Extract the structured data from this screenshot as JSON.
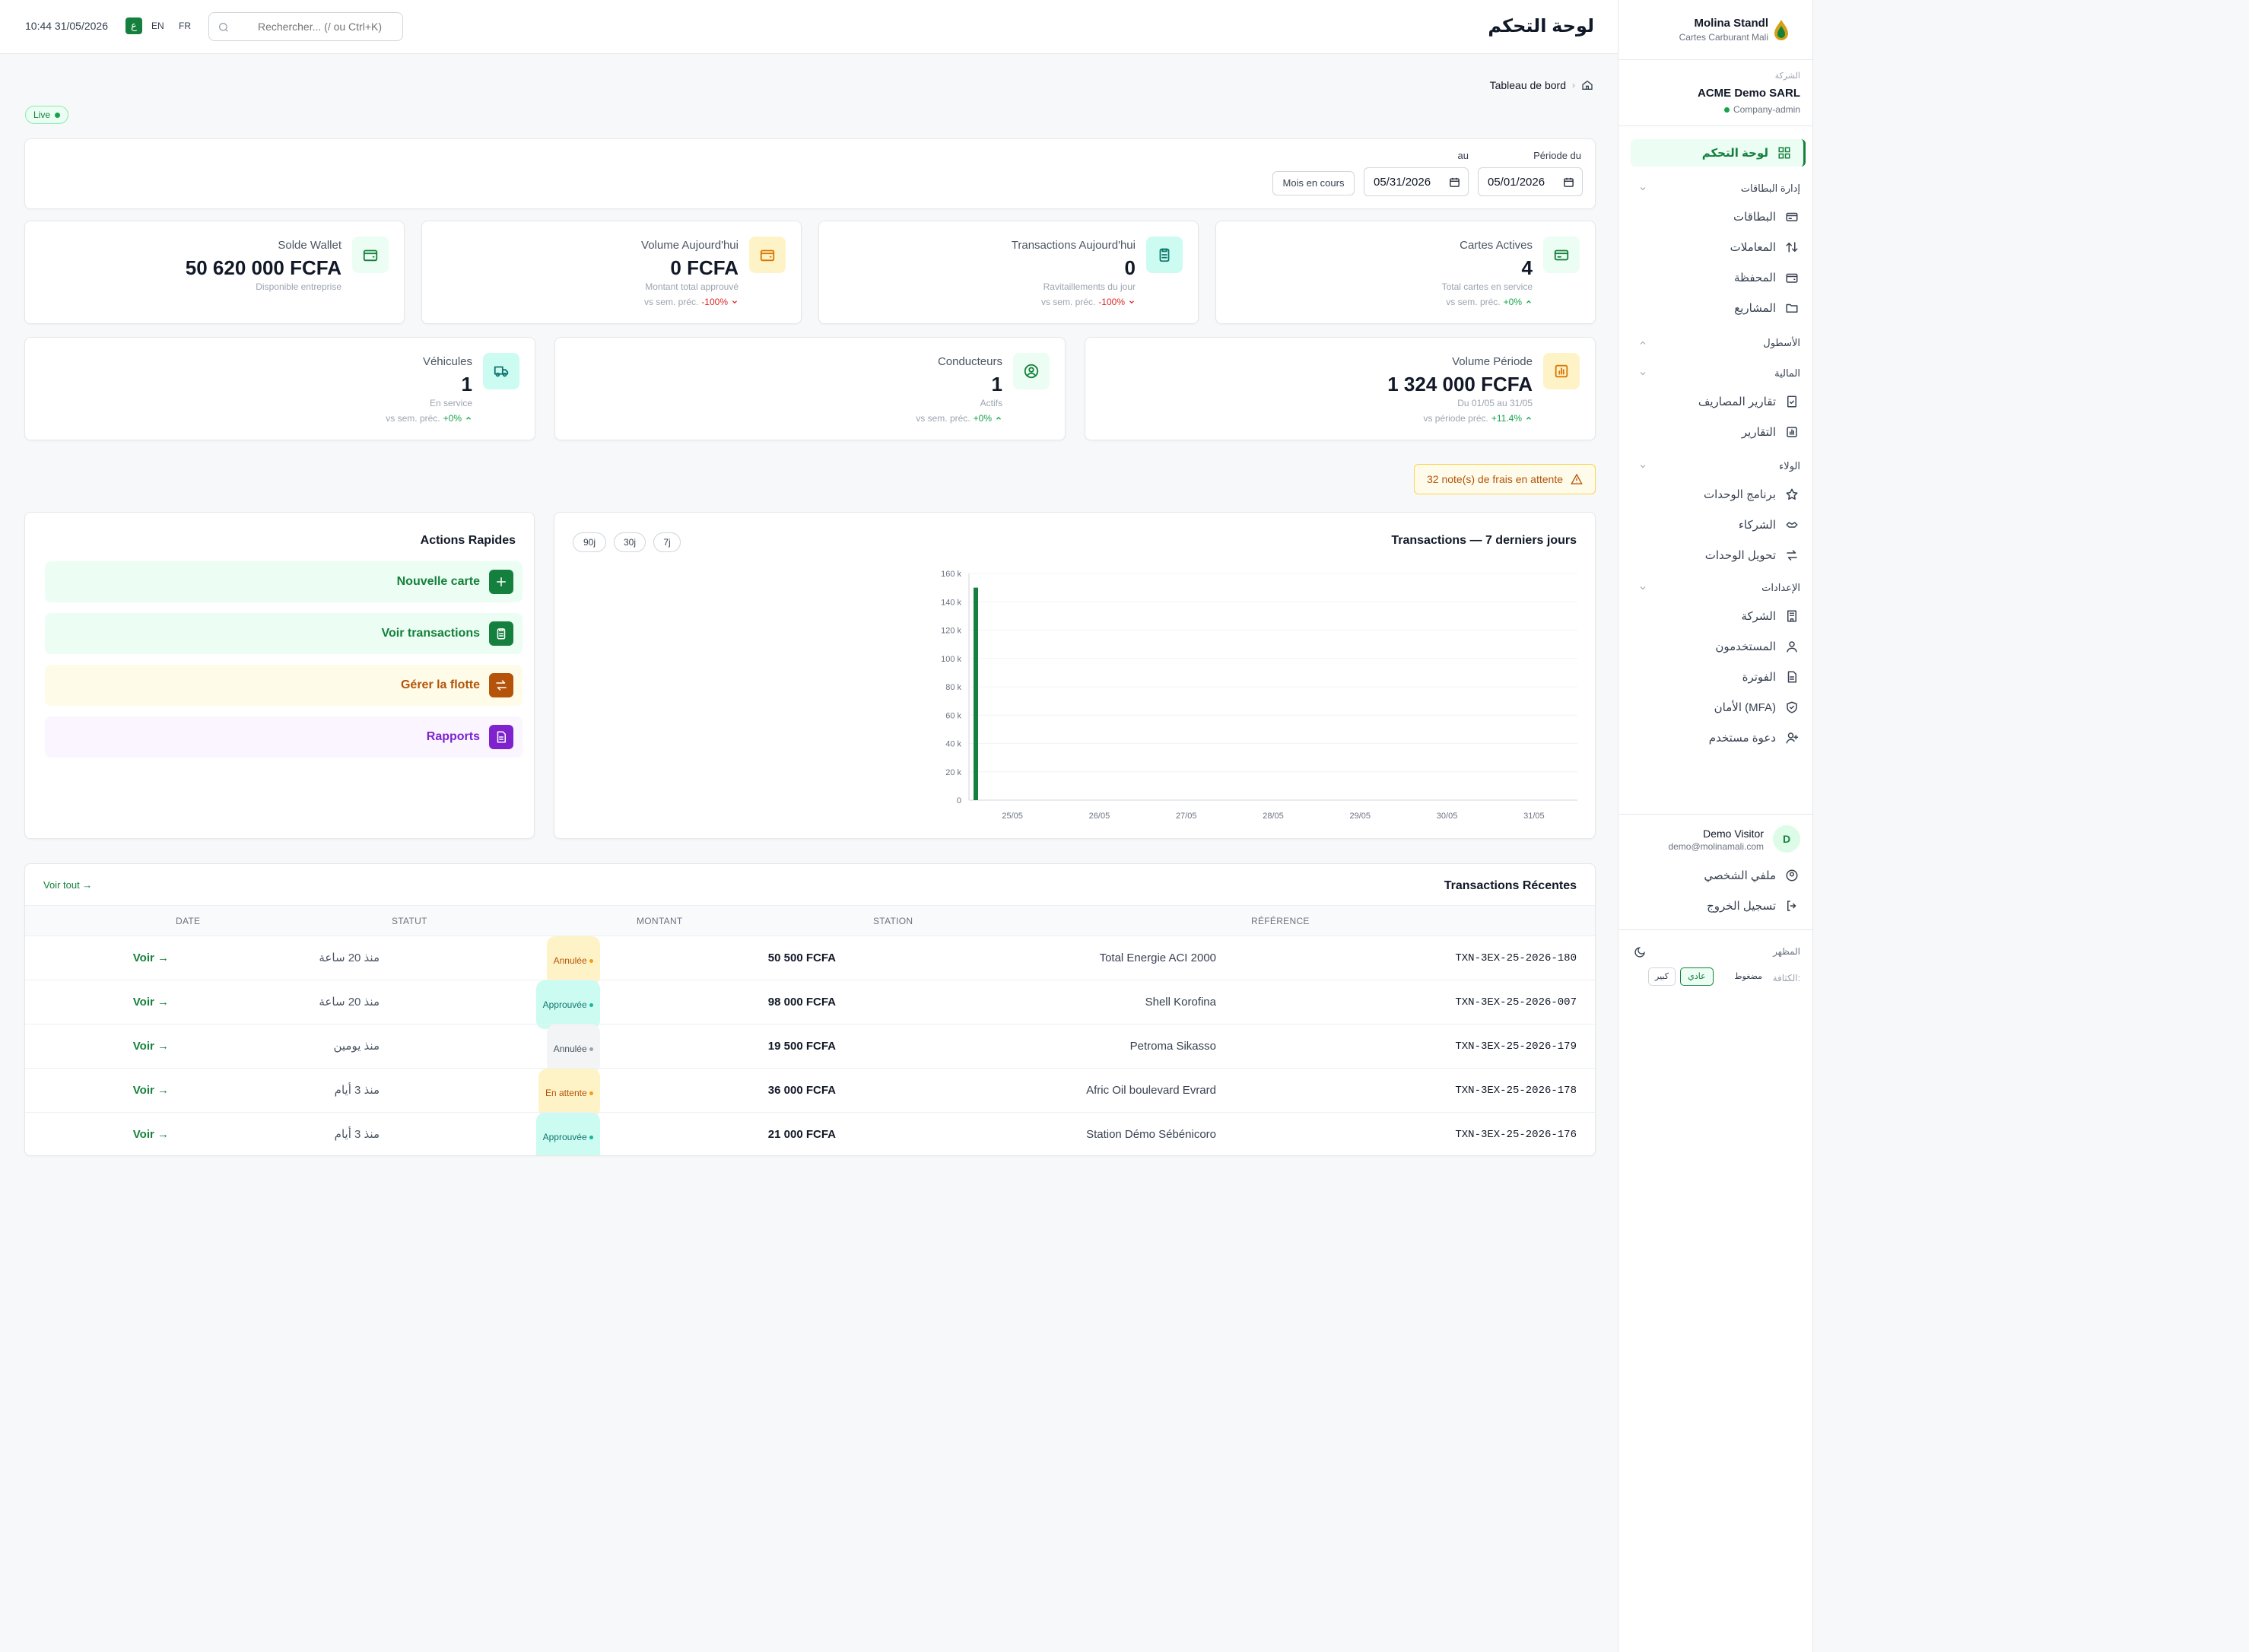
{
  "colors": {
    "primary": "#15803d",
    "accent_bg": "#ecfdf3",
    "amber": "#d97706",
    "purple": "#7e22ce",
    "red": "#dc2626"
  },
  "header": {
    "datetime": "10:44 31/05/2026",
    "lang_ar": "ع",
    "lang_en": "EN",
    "lang_fr": "FR",
    "search_placeholder": "Rechercher... (/ ou Ctrl+K)",
    "page_title": "لوحة التحكم"
  },
  "sidebar": {
    "user_name": "Molina Standl",
    "user_subtitle": "Cartes Carburant Mali",
    "company_label": "الشركة",
    "company_name": "ACME Demo SARL",
    "company_role": "Company-admin",
    "active": {
      "label": "لوحة التحكم",
      "icon": "dashboard-icon"
    },
    "sections": [
      {
        "title": "إدارة البطاقات",
        "items": [
          {
            "label": "البطاقات",
            "icon": "card-icon"
          },
          {
            "label": "المعاملات",
            "icon": "arrows-updown-icon"
          },
          {
            "label": "المحفظة",
            "icon": "wallet-icon"
          },
          {
            "label": "المشاريع",
            "icon": "folder-icon"
          }
        ]
      },
      {
        "title": "الأسطول",
        "items": []
      },
      {
        "title": "المالية",
        "items": [
          {
            "label": "تقارير المصاريف",
            "icon": "receipt-icon"
          },
          {
            "label": "التقارير",
            "icon": "bar-chart-icon"
          }
        ]
      },
      {
        "title": "الولاء",
        "items": [
          {
            "label": "برنامج الوحدات",
            "icon": "star-icon"
          },
          {
            "label": "الشركاء",
            "icon": "handshake-icon"
          },
          {
            "label": "تحويل الوحدات",
            "icon": "transfer-icon"
          }
        ]
      },
      {
        "title": "الإعدادات",
        "items": [
          {
            "label": "الشركة",
            "icon": "building-icon"
          },
          {
            "label": "المستخدمون",
            "icon": "users-icon"
          },
          {
            "label": "الفوترة",
            "icon": "document-icon"
          },
          {
            "label": "الأمان (MFA)",
            "icon": "shield-icon"
          },
          {
            "label": "دعوة مستخدم",
            "icon": "user-plus-icon"
          }
        ]
      }
    ],
    "visitor_name": "Demo Visitor",
    "visitor_email": "demo@molinamali.com",
    "visitor_initial": "D",
    "profile_label": "ملفي الشخصي",
    "logout_label": "تسجيل الخروج",
    "appearance_label": "المظهر",
    "density_label": "الكثافة:",
    "density_options": [
      "مضغوط",
      "عادي",
      "كبير"
    ]
  },
  "breadcrumb": {
    "label": "Tableau de bord"
  },
  "live_badge": "Live",
  "filters": {
    "period_from_label": "Période du",
    "period_to_label": "au",
    "from_value": "05/01/2026",
    "to_value": "05/31/2026",
    "current_month_btn": "Mois en cours"
  },
  "kpis_row1": [
    {
      "label": "Cartes Actives",
      "value": "4",
      "sub": "Total cartes en service",
      "trend_prefix": "vs sem. préc.",
      "trend": "+0%",
      "trend_dir": "up",
      "icon": "card-icon"
    },
    {
      "label": "Transactions Aujourd'hui",
      "value": "0",
      "sub": "Ravitaillements du jour",
      "trend_prefix": "vs sem. préc.",
      "trend": "-100%",
      "trend_dir": "down",
      "icon": "clipboard-icon"
    },
    {
      "label": "Volume Aujourd'hui",
      "value": "0 FCFA",
      "sub": "Montant total approuvé",
      "trend_prefix": "vs sem. préc.",
      "trend": "-100%",
      "trend_dir": "down",
      "icon": "wallet-icon"
    },
    {
      "label": "Solde Wallet",
      "value": "50 620 000 FCFA",
      "sub": "Disponible entreprise",
      "icon": "wallet-icon"
    }
  ],
  "kpis_row2": [
    {
      "label": "Volume Période",
      "value": "1 324 000 FCFA",
      "sub": "Du 01/05 au 31/05",
      "trend_prefix": "vs période préc.",
      "trend": "+11.4%",
      "trend_dir": "up",
      "icon": "bar-chart-icon"
    },
    {
      "label": "Conducteurs",
      "value": "1",
      "sub": "Actifs",
      "trend_prefix": "vs sem. préc.",
      "trend": "+0%",
      "trend_dir": "up",
      "icon": "user-circle-icon"
    },
    {
      "label": "Véhicules",
      "value": "1",
      "sub": "En service",
      "trend_prefix": "vs sem. préc.",
      "trend": "+0%",
      "trend_dir": "up",
      "icon": "truck-icon"
    }
  ],
  "alert": {
    "text": "32 note(s) de frais en attente"
  },
  "chart_card": {
    "title": "Transactions — 7 derniers jours",
    "ranges": [
      "7j",
      "30j",
      "90j"
    ]
  },
  "chart_data": {
    "type": "bar",
    "title": "Transactions — 7 derniers jours",
    "categories": [
      "25/05",
      "26/05",
      "27/05",
      "28/05",
      "29/05",
      "30/05",
      "31/05"
    ],
    "y_tick_labels": [
      "0",
      "20 k",
      "40 k",
      "60 k",
      "80 k",
      "100 k",
      "120 k",
      "140 k",
      "160 k"
    ],
    "ylim": [
      0,
      160000
    ],
    "series": [
      {
        "values": [
          150000,
          0,
          0,
          0,
          0,
          0,
          0
        ]
      }
    ],
    "grid": true
  },
  "quick_actions": {
    "title": "Actions Rapides",
    "items": [
      {
        "label": "Nouvelle carte",
        "icon": "plus-icon",
        "color": "#15803d",
        "bg": "#ecfdf3"
      },
      {
        "label": "Voir transactions",
        "icon": "clipboard-icon",
        "color": "#15803d",
        "bg": "#ecfdf3"
      },
      {
        "label": "Gérer la flotte",
        "icon": "transfer-icon",
        "color": "#b45309",
        "bg": "#fefce8"
      },
      {
        "label": "Rapports",
        "icon": "document-icon",
        "color": "#7e22ce",
        "bg": "#faf5ff"
      }
    ]
  },
  "recent": {
    "title": "Transactions Récentes",
    "see_all": "Voir tout →",
    "columns": [
      "RÉFÉRENCE",
      "STATION",
      "MONTANT",
      "STATUT",
      "DATE"
    ],
    "rows": [
      {
        "ref": "TXN-3EX-25-2026-180",
        "station": "Total Energie ACI 2000",
        "amount": "50 500 FCFA",
        "status": "Annulée",
        "status_kind": "amber",
        "date": "منذ 20 ساعة",
        "action": "Voir →"
      },
      {
        "ref": "TXN-3EX-25-2026-007",
        "station": "Shell Korofina",
        "amount": "98 000 FCFA",
        "status": "Approuvée",
        "status_kind": "teal",
        "date": "منذ 20 ساعة",
        "action": "Voir →"
      },
      {
        "ref": "TXN-3EX-25-2026-179",
        "station": "Petroma Sikasso",
        "amount": "19 500 FCFA",
        "status": "Annulée",
        "status_kind": "gray",
        "date": "منذ يومين",
        "action": "Voir →"
      },
      {
        "ref": "TXN-3EX-25-2026-178",
        "station": "Afric Oil boulevard Evrard",
        "amount": "36 000 FCFA",
        "status": "En attente",
        "status_kind": "amber",
        "date": "منذ 3 أيام",
        "action": "Voir →"
      },
      {
        "ref": "TXN-3EX-25-2026-176",
        "station": "Station Démo Sébénicoro",
        "amount": "21 000 FCFA",
        "status": "Approuvée",
        "status_kind": "teal",
        "date": "منذ 3 أيام",
        "action": "Voir →"
      }
    ]
  }
}
